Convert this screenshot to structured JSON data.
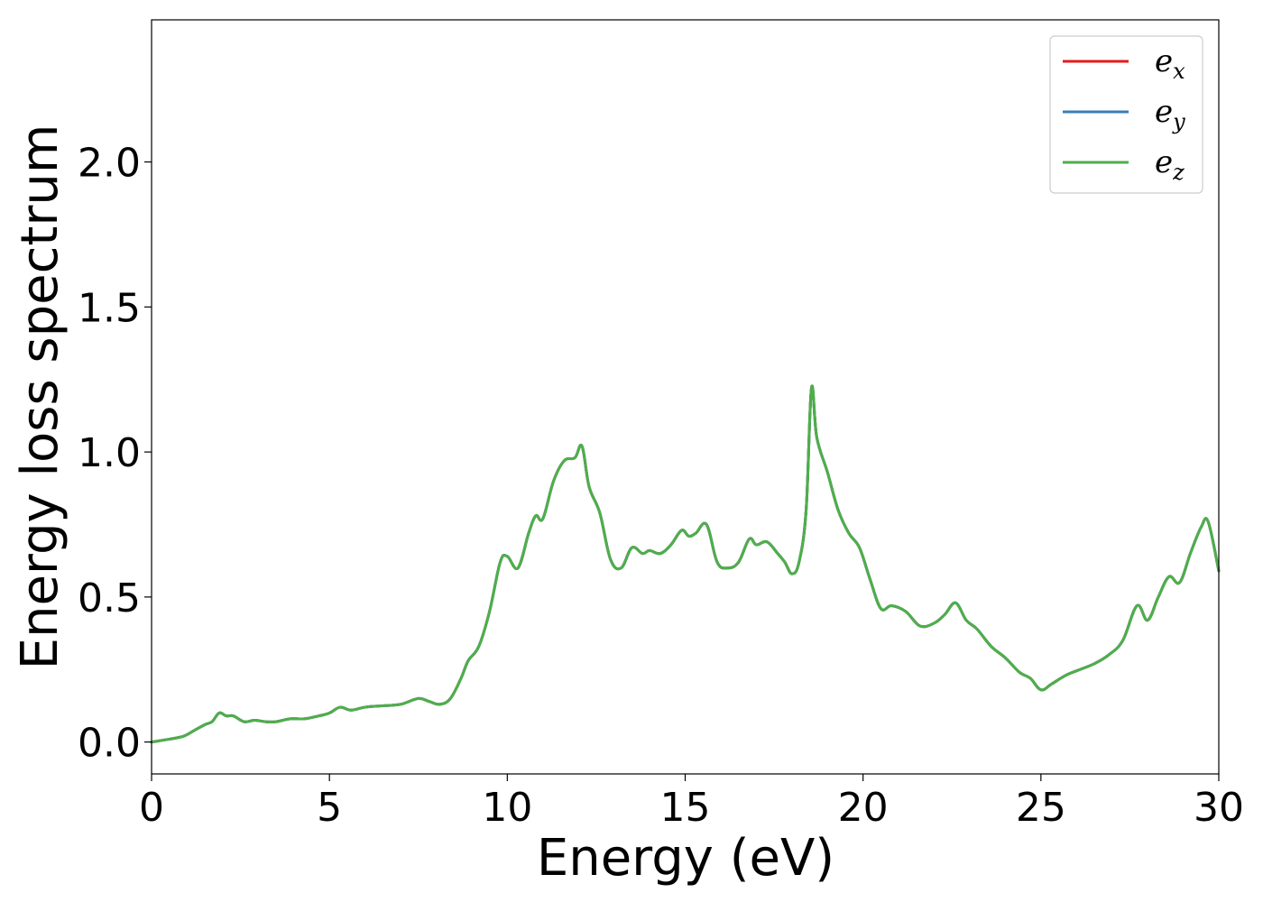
{
  "chart_data": {
    "type": "line",
    "xlabel": "Energy (eV)",
    "ylabel": "Energy loss spectrum",
    "xlim": [
      0,
      30
    ],
    "ylim": [
      -0.11,
      2.49
    ],
    "xticks": [
      0,
      5,
      10,
      15,
      20,
      25,
      30
    ],
    "xtick_labels": [
      "0",
      "5",
      "10",
      "15",
      "20",
      "25",
      "30"
    ],
    "yticks": [
      0.0,
      0.5,
      1.0,
      1.5,
      2.0
    ],
    "ytick_labels": [
      "0.0",
      "0.5",
      "1.0",
      "1.5",
      "2.0"
    ],
    "grid": false,
    "legend_position": "top-right",
    "x": [
      0,
      0.5,
      0.9,
      1.2,
      1.5,
      1.7,
      1.9,
      2.1,
      2.3,
      2.6,
      2.9,
      3.2,
      3.5,
      3.9,
      4.3,
      4.7,
      5.0,
      5.3,
      5.6,
      6.0,
      6.5,
      7.0,
      7.5,
      7.8,
      8.1,
      8.4,
      8.7,
      8.9,
      9.2,
      9.5,
      9.8,
      10.0,
      10.3,
      10.6,
      10.8,
      11.0,
      11.3,
      11.6,
      11.9,
      12.1,
      12.3,
      12.6,
      12.9,
      13.2,
      13.5,
      13.8,
      14.0,
      14.3,
      14.6,
      14.9,
      15.1,
      15.3,
      15.6,
      15.9,
      16.2,
      16.5,
      16.8,
      17.0,
      17.3,
      17.6,
      17.8,
      18.0,
      18.2,
      18.4,
      18.55,
      18.7,
      19.0,
      19.3,
      19.6,
      19.9,
      20.2,
      20.5,
      20.8,
      21.2,
      21.6,
      22.0,
      22.3,
      22.6,
      22.9,
      23.2,
      23.6,
      24.0,
      24.4,
      24.7,
      25.0,
      25.3,
      25.7,
      26.1,
      26.5,
      26.9,
      27.3,
      27.7,
      28.0,
      28.3,
      28.6,
      28.9,
      29.2,
      29.5,
      29.7,
      30.0
    ],
    "series": [
      {
        "name": "e_x",
        "color": "#e41a1c",
        "values": [
          0.0,
          0.01,
          0.02,
          0.04,
          0.06,
          0.07,
          0.1,
          0.09,
          0.09,
          0.07,
          0.075,
          0.07,
          0.07,
          0.08,
          0.08,
          0.09,
          0.1,
          0.12,
          0.11,
          0.12,
          0.125,
          0.13,
          0.15,
          0.14,
          0.13,
          0.15,
          0.22,
          0.28,
          0.33,
          0.45,
          0.62,
          0.64,
          0.6,
          0.72,
          0.78,
          0.77,
          0.9,
          0.97,
          0.98,
          1.02,
          0.88,
          0.79,
          0.63,
          0.6,
          0.67,
          0.65,
          0.66,
          0.65,
          0.68,
          0.73,
          0.71,
          0.72,
          0.75,
          0.62,
          0.6,
          0.62,
          0.7,
          0.68,
          0.69,
          0.65,
          0.62,
          0.58,
          0.62,
          0.8,
          1.22,
          1.05,
          0.93,
          0.8,
          0.72,
          0.67,
          0.56,
          0.46,
          0.47,
          0.45,
          0.4,
          0.41,
          0.44,
          0.48,
          0.42,
          0.39,
          0.33,
          0.29,
          0.24,
          0.22,
          0.18,
          0.2,
          0.23,
          0.25,
          0.27,
          0.3,
          0.35,
          0.47,
          0.42,
          0.5,
          0.57,
          0.55,
          0.65,
          0.74,
          0.76,
          0.59
        ]
      },
      {
        "name": "e_y",
        "color": "#377eb8",
        "values": [
          0.0,
          0.01,
          0.02,
          0.04,
          0.06,
          0.07,
          0.1,
          0.09,
          0.09,
          0.07,
          0.075,
          0.07,
          0.07,
          0.08,
          0.08,
          0.09,
          0.1,
          0.12,
          0.11,
          0.12,
          0.125,
          0.13,
          0.15,
          0.14,
          0.13,
          0.15,
          0.22,
          0.28,
          0.33,
          0.45,
          0.62,
          0.64,
          0.6,
          0.72,
          0.78,
          0.77,
          0.9,
          0.97,
          0.98,
          1.02,
          0.88,
          0.79,
          0.63,
          0.6,
          0.67,
          0.65,
          0.66,
          0.65,
          0.68,
          0.73,
          0.71,
          0.72,
          0.75,
          0.62,
          0.6,
          0.62,
          0.7,
          0.68,
          0.69,
          0.65,
          0.62,
          0.58,
          0.62,
          0.8,
          1.22,
          1.05,
          0.93,
          0.8,
          0.72,
          0.67,
          0.56,
          0.46,
          0.47,
          0.45,
          0.4,
          0.41,
          0.44,
          0.48,
          0.42,
          0.39,
          0.33,
          0.29,
          0.24,
          0.22,
          0.18,
          0.2,
          0.23,
          0.25,
          0.27,
          0.3,
          0.35,
          0.47,
          0.42,
          0.5,
          0.57,
          0.55,
          0.65,
          0.74,
          0.76,
          0.59
        ]
      },
      {
        "name": "e_z",
        "color": "#4daf4a",
        "values": [
          0.0,
          0.01,
          0.02,
          0.04,
          0.06,
          0.07,
          0.1,
          0.09,
          0.09,
          0.07,
          0.075,
          0.07,
          0.07,
          0.08,
          0.08,
          0.09,
          0.1,
          0.12,
          0.11,
          0.12,
          0.125,
          0.13,
          0.15,
          0.14,
          0.13,
          0.15,
          0.22,
          0.28,
          0.33,
          0.45,
          0.62,
          0.64,
          0.6,
          0.72,
          0.78,
          0.77,
          0.9,
          0.97,
          0.98,
          1.02,
          0.88,
          0.79,
          0.63,
          0.6,
          0.67,
          0.65,
          0.66,
          0.65,
          0.68,
          0.73,
          0.71,
          0.72,
          0.75,
          0.62,
          0.6,
          0.62,
          0.7,
          0.68,
          0.69,
          0.65,
          0.62,
          0.58,
          0.62,
          0.8,
          1.22,
          1.05,
          0.93,
          0.8,
          0.72,
          0.67,
          0.56,
          0.46,
          0.47,
          0.45,
          0.4,
          0.41,
          0.44,
          0.48,
          0.42,
          0.39,
          0.33,
          0.29,
          0.24,
          0.22,
          0.18,
          0.2,
          0.23,
          0.25,
          0.27,
          0.3,
          0.35,
          0.47,
          0.42,
          0.5,
          0.57,
          0.55,
          0.65,
          0.74,
          0.76,
          0.59
        ]
      }
    ],
    "legend": [
      {
        "base": "e",
        "sub": "x",
        "color": "#e41a1c"
      },
      {
        "base": "e",
        "sub": "y",
        "color": "#377eb8"
      },
      {
        "base": "e",
        "sub": "z",
        "color": "#4daf4a"
      }
    ]
  }
}
